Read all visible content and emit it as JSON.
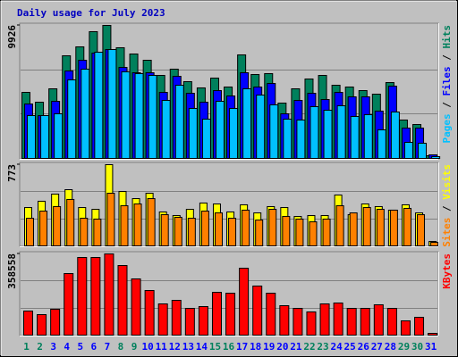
{
  "title": "Daily usage for July 2023",
  "legend_separator": " / ",
  "chart_data": [
    {
      "type": "bar",
      "ylim": [
        0,
        9926
      ],
      "yticks": [
        9926
      ],
      "series": [
        {
          "name": "Hits",
          "color": "#00805c",
          "values": [
            4930,
            4197,
            5196,
            7661,
            8327,
            9460,
            9926,
            8261,
            7794,
            7328,
            6195,
            6662,
            5729,
            5263,
            5996,
            5329,
            7728,
            6262,
            6329,
            4130,
            5196,
            5929,
            6195,
            5462,
            5329,
            5063,
            4796,
            5662,
            2865,
            2531,
            200
          ]
        },
        {
          "name": "Files",
          "color": "#0000ff",
          "values": [
            4064,
            3198,
            4264,
            6529,
            7328,
            7861,
            8127,
            6795,
            6395,
            6395,
            4930,
            6129,
            4863,
            4197,
            5063,
            4663,
            6395,
            5329,
            5596,
            3331,
            4330,
            4863,
            4397,
            4930,
            4597,
            4597,
            3531,
            5396,
            2265,
            2265,
            266
          ]
        },
        {
          "name": "Pages",
          "color": "#00c0ff",
          "values": [
            3198,
            3198,
            3331,
            5862,
            6662,
            7928,
            8127,
            6462,
            6329,
            6195,
            4330,
            5462,
            3731,
            2931,
            4264,
            3731,
            5196,
            4730,
            3997,
            2931,
            2865,
            3864,
            3597,
            3930,
            3131,
            3264,
            2132,
            3464,
            1199,
            1133,
            133
          ]
        }
      ]
    },
    {
      "type": "bar",
      "ylim": [
        0,
        773
      ],
      "yticks": [
        773
      ],
      "series": [
        {
          "name": "Visits",
          "color": "#ffff00",
          "values": [
            365,
            425,
            493,
            535,
            365,
            348,
            773,
            518,
            450,
            501,
            323,
            289,
            348,
            408,
            399,
            323,
            391,
            314,
            374,
            365,
            280,
            289,
            289,
            484,
            297,
            399,
            374,
            340,
            391,
            314,
            42
          ]
        },
        {
          "name": "Sites",
          "color": "#ff8000",
          "values": [
            263,
            331,
            374,
            442,
            263,
            255,
            501,
            382,
            399,
            450,
            297,
            272,
            263,
            331,
            314,
            263,
            340,
            246,
            348,
            280,
            255,
            229,
            255,
            382,
            314,
            365,
            348,
            340,
            357,
            297,
            34
          ]
        }
      ]
    },
    {
      "type": "bar",
      "ylim": [
        0,
        358558
      ],
      "yticks": [
        358558
      ],
      "categories": [
        "1",
        "2",
        "3",
        "4",
        "5",
        "6",
        "7",
        "8",
        "9",
        "10",
        "11",
        "12",
        "13",
        "14",
        "15",
        "16",
        "17",
        "18",
        "19",
        "20",
        "21",
        "22",
        "23",
        "24",
        "25",
        "26",
        "27",
        "28",
        "29",
        "30",
        "31"
      ],
      "category_colors": [
        "#00805c",
        "#00805c",
        "#0000ff",
        "#0000ff",
        "#0000ff",
        "#0000ff",
        "#0000ff",
        "#00805c",
        "#00805c",
        "#0000ff",
        "#0000ff",
        "#0000ff",
        "#0000ff",
        "#0000ff",
        "#00805c",
        "#00805c",
        "#0000ff",
        "#0000ff",
        "#0000ff",
        "#0000ff",
        "#0000ff",
        "#00805c",
        "#00805c",
        "#0000ff",
        "#0000ff",
        "#0000ff",
        "#0000ff",
        "#0000ff",
        "#00805c",
        "#00805c",
        "#0000ff"
      ],
      "series": [
        {
          "name": "KBytes",
          "color": "#ff0000",
          "values": [
            106386,
            90625,
            114266,
            271870,
            342805,
            342805,
            358558,
            307342,
            248229,
            197007,
            137905,
            153666,
            118206,
            126087,
            189127,
            185187,
            295521,
            216708,
            185187,
            130025,
            118206,
            102446,
            137905,
            141845,
            118206,
            118206,
            133965,
            118206,
            63042,
            78803,
            7880
          ]
        }
      ]
    }
  ]
}
